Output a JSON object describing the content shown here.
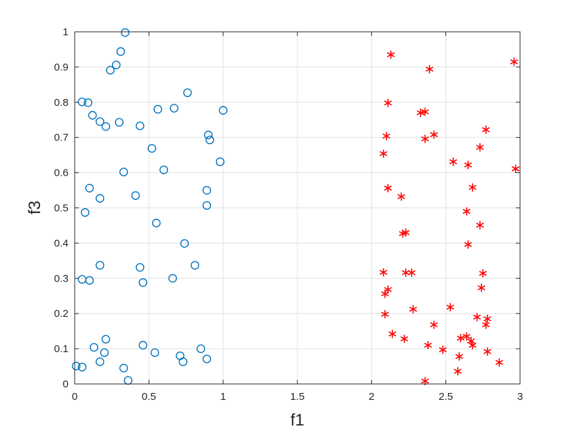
{
  "chart_data": {
    "type": "scatter",
    "title": "",
    "xlabel": "f1",
    "ylabel": "f3",
    "xlim": [
      0,
      3
    ],
    "ylim": [
      0,
      1
    ],
    "grid": true,
    "x_ticks": [
      "0",
      "0.5",
      "1",
      "1.5",
      "2",
      "2.5",
      "3"
    ],
    "y_ticks": [
      "0",
      "0.1",
      "0.2",
      "0.3",
      "0.4",
      "0.5",
      "0.6",
      "0.7",
      "0.8",
      "0.9",
      "1"
    ],
    "series": [
      {
        "marker": "circle",
        "color": "#0072BD",
        "points": [
          [
            0.34,
            0.998
          ],
          [
            0.31,
            0.944
          ],
          [
            0.28,
            0.906
          ],
          [
            0.24,
            0.891
          ],
          [
            0.76,
            0.827
          ],
          [
            0.05,
            0.801
          ],
          [
            0.09,
            0.799
          ],
          [
            0.56,
            0.78
          ],
          [
            0.67,
            0.783
          ],
          [
            1.0,
            0.777
          ],
          [
            0.12,
            0.763
          ],
          [
            0.17,
            0.745
          ],
          [
            0.3,
            0.743
          ],
          [
            0.21,
            0.731
          ],
          [
            0.44,
            0.733
          ],
          [
            0.9,
            0.707
          ],
          [
            0.91,
            0.693
          ],
          [
            0.52,
            0.669
          ],
          [
            0.98,
            0.631
          ],
          [
            0.33,
            0.602
          ],
          [
            0.6,
            0.608
          ],
          [
            0.1,
            0.556
          ],
          [
            0.89,
            0.55
          ],
          [
            0.41,
            0.535
          ],
          [
            0.17,
            0.527
          ],
          [
            0.89,
            0.507
          ],
          [
            0.07,
            0.487
          ],
          [
            0.55,
            0.457
          ],
          [
            0.74,
            0.399
          ],
          [
            0.17,
            0.337
          ],
          [
            0.44,
            0.331
          ],
          [
            0.81,
            0.337
          ],
          [
            0.05,
            0.297
          ],
          [
            0.1,
            0.294
          ],
          [
            0.46,
            0.288
          ],
          [
            0.66,
            0.3
          ],
          [
            0.21,
            0.127
          ],
          [
            0.46,
            0.11
          ],
          [
            0.13,
            0.104
          ],
          [
            0.85,
            0.1
          ],
          [
            0.2,
            0.089
          ],
          [
            0.54,
            0.089
          ],
          [
            0.71,
            0.08
          ],
          [
            0.17,
            0.063
          ],
          [
            0.89,
            0.071
          ],
          [
            0.73,
            0.063
          ],
          [
            0.01,
            0.051
          ],
          [
            0.05,
            0.048
          ],
          [
            0.33,
            0.045
          ],
          [
            0.36,
            0.01
          ]
        ]
      },
      {
        "marker": "asterisk",
        "color": "#FF0000",
        "points": [
          [
            2.13,
            0.935
          ],
          [
            2.96,
            0.915
          ],
          [
            2.39,
            0.894
          ],
          [
            2.11,
            0.798
          ],
          [
            2.33,
            0.77
          ],
          [
            2.36,
            0.773
          ],
          [
            2.77,
            0.722
          ],
          [
            2.1,
            0.704
          ],
          [
            2.42,
            0.708
          ],
          [
            2.36,
            0.696
          ],
          [
            2.73,
            0.672
          ],
          [
            2.08,
            0.654
          ],
          [
            2.55,
            0.631
          ],
          [
            2.65,
            0.622
          ],
          [
            2.97,
            0.611
          ],
          [
            2.11,
            0.556
          ],
          [
            2.68,
            0.558
          ],
          [
            2.2,
            0.532
          ],
          [
            2.64,
            0.49
          ],
          [
            2.73,
            0.451
          ],
          [
            2.21,
            0.427
          ],
          [
            2.23,
            0.43
          ],
          [
            2.65,
            0.396
          ],
          [
            2.08,
            0.317
          ],
          [
            2.23,
            0.316
          ],
          [
            2.27,
            0.316
          ],
          [
            2.75,
            0.314
          ],
          [
            2.11,
            0.268
          ],
          [
            2.09,
            0.256
          ],
          [
            2.74,
            0.273
          ],
          [
            2.53,
            0.218
          ],
          [
            2.28,
            0.212
          ],
          [
            2.09,
            0.198
          ],
          [
            2.71,
            0.19
          ],
          [
            2.78,
            0.185
          ],
          [
            2.42,
            0.168
          ],
          [
            2.77,
            0.168
          ],
          [
            2.14,
            0.142
          ],
          [
            2.22,
            0.128
          ],
          [
            2.6,
            0.13
          ],
          [
            2.64,
            0.135
          ],
          [
            2.67,
            0.122
          ],
          [
            2.68,
            0.11
          ],
          [
            2.38,
            0.11
          ],
          [
            2.48,
            0.097
          ],
          [
            2.78,
            0.092
          ],
          [
            2.59,
            0.078
          ],
          [
            2.86,
            0.061
          ],
          [
            2.58,
            0.036
          ],
          [
            2.36,
            0.008
          ]
        ]
      }
    ]
  }
}
